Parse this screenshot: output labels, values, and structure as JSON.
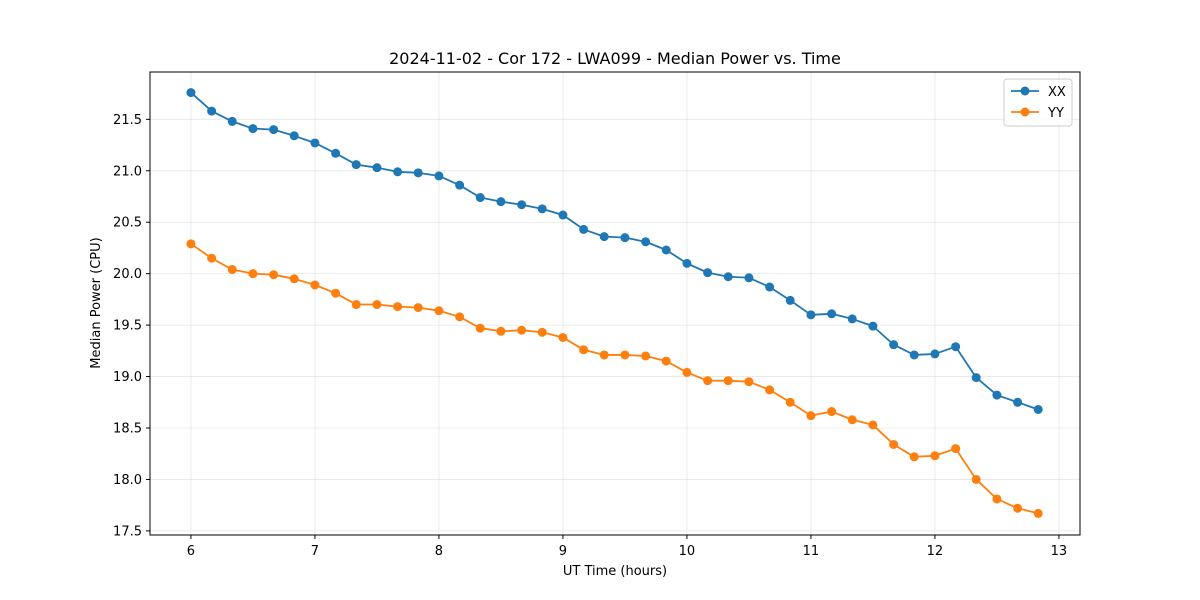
{
  "chart_data": {
    "type": "line",
    "title": "2024-11-02 - Cor 172 - LWA099 - Median Power vs. Time",
    "xlabel": "UT Time (hours)",
    "ylabel": "Median Power (CPU)",
    "xlim": [
      5.67,
      13.17
    ],
    "ylim": [
      17.46,
      21.96
    ],
    "xticks": [
      6,
      7,
      8,
      9,
      10,
      11,
      12,
      13
    ],
    "yticks": [
      17.5,
      18.0,
      18.5,
      19.0,
      19.5,
      20.0,
      20.5,
      21.0,
      21.5
    ],
    "grid": true,
    "legend_position": "top-right",
    "x": [
      6.0,
      6.167,
      6.333,
      6.5,
      6.667,
      6.833,
      7.0,
      7.167,
      7.333,
      7.5,
      7.667,
      7.833,
      8.0,
      8.167,
      8.333,
      8.5,
      8.667,
      8.833,
      9.0,
      9.167,
      9.333,
      9.5,
      9.667,
      9.833,
      10.0,
      10.167,
      10.333,
      10.5,
      10.667,
      10.833,
      11.0,
      11.167,
      11.333,
      11.5,
      11.667,
      11.833,
      12.0,
      12.167,
      12.333,
      12.5,
      12.667,
      12.833
    ],
    "series": [
      {
        "name": "XX",
        "color": "#1f77b4",
        "values": [
          21.76,
          21.58,
          21.48,
          21.41,
          21.4,
          21.34,
          21.27,
          21.17,
          21.06,
          21.03,
          20.99,
          20.98,
          20.95,
          20.86,
          20.74,
          20.7,
          20.67,
          20.63,
          20.57,
          20.43,
          20.36,
          20.35,
          20.31,
          20.23,
          20.1,
          20.01,
          19.97,
          19.96,
          19.87,
          19.74,
          19.6,
          19.61,
          19.56,
          19.49,
          19.31,
          19.21,
          19.22,
          19.29,
          18.99,
          18.82,
          18.75,
          18.68
        ]
      },
      {
        "name": "YY",
        "color": "#ff7f0e",
        "values": [
          20.29,
          20.15,
          20.04,
          20.0,
          19.99,
          19.95,
          19.89,
          19.81,
          19.7,
          19.7,
          19.68,
          19.67,
          19.64,
          19.58,
          19.47,
          19.44,
          19.45,
          19.43,
          19.38,
          19.26,
          19.21,
          19.21,
          19.2,
          19.15,
          19.04,
          18.96,
          18.96,
          18.95,
          18.87,
          18.75,
          18.62,
          18.66,
          18.58,
          18.53,
          18.34,
          18.22,
          18.23,
          18.3,
          18.0,
          17.81,
          17.72,
          17.67
        ]
      }
    ]
  }
}
